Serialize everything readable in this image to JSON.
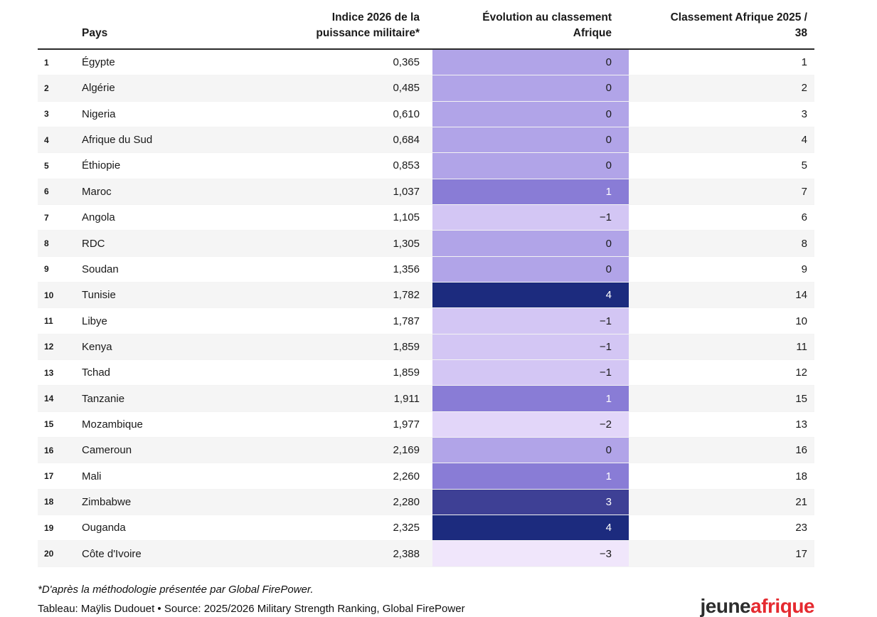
{
  "chart_data": {
    "type": "table",
    "title": "",
    "columns": [
      "Pays",
      "Indice 2026 de la puissance militaire*",
      "Évolution au classement Afrique",
      "Classement Afrique 2025 / 38"
    ],
    "rows": [
      {
        "rank": "1",
        "pays": "Égypte",
        "indice": "0,365",
        "evolution": "0",
        "classement_2025": "1"
      },
      {
        "rank": "2",
        "pays": "Algérie",
        "indice": "0,485",
        "evolution": "0",
        "classement_2025": "2"
      },
      {
        "rank": "3",
        "pays": "Nigeria",
        "indice": "0,610",
        "evolution": "0",
        "classement_2025": "3"
      },
      {
        "rank": "4",
        "pays": "Afrique du Sud",
        "indice": "0,684",
        "evolution": "0",
        "classement_2025": "4"
      },
      {
        "rank": "5",
        "pays": "Éthiopie",
        "indice": "0,853",
        "evolution": "0",
        "classement_2025": "5"
      },
      {
        "rank": "6",
        "pays": "Maroc",
        "indice": "1,037",
        "evolution": "1",
        "classement_2025": "7"
      },
      {
        "rank": "7",
        "pays": "Angola",
        "indice": "1,105",
        "evolution": "−1",
        "classement_2025": "6"
      },
      {
        "rank": "8",
        "pays": "RDC",
        "indice": "1,305",
        "evolution": "0",
        "classement_2025": "8"
      },
      {
        "rank": "9",
        "pays": "Soudan",
        "indice": "1,356",
        "evolution": "0",
        "classement_2025": "9"
      },
      {
        "rank": "10",
        "pays": "Tunisie",
        "indice": "1,782",
        "evolution": "4",
        "classement_2025": "14"
      },
      {
        "rank": "11",
        "pays": "Libye",
        "indice": "1,787",
        "evolution": "−1",
        "classement_2025": "10"
      },
      {
        "rank": "12",
        "pays": "Kenya",
        "indice": "1,859",
        "evolution": "−1",
        "classement_2025": "11"
      },
      {
        "rank": "13",
        "pays": "Tchad",
        "indice": "1,859",
        "evolution": "−1",
        "classement_2025": "12"
      },
      {
        "rank": "14",
        "pays": "Tanzanie",
        "indice": "1,911",
        "evolution": "1",
        "classement_2025": "15"
      },
      {
        "rank": "15",
        "pays": "Mozambique",
        "indice": "1,977",
        "evolution": "−2",
        "classement_2025": "13"
      },
      {
        "rank": "16",
        "pays": "Cameroun",
        "indice": "2,169",
        "evolution": "0",
        "classement_2025": "16"
      },
      {
        "rank": "17",
        "pays": "Mali",
        "indice": "2,260",
        "evolution": "1",
        "classement_2025": "18"
      },
      {
        "rank": "18",
        "pays": "Zimbabwe",
        "indice": "2,280",
        "evolution": "3",
        "classement_2025": "21"
      },
      {
        "rank": "19",
        "pays": "Ouganda",
        "indice": "2,325",
        "evolution": "4",
        "classement_2025": "23"
      },
      {
        "rank": "20",
        "pays": "Côte d'Ivoire",
        "indice": "2,388",
        "evolution": "−3",
        "classement_2025": "17"
      }
    ]
  },
  "table": {
    "headers": {
      "pays": "Pays",
      "indice_line1": "Indice 2026 de la",
      "indice_line2": "puissance militaire*",
      "evolution_line1": "Évolution au classement",
      "evolution_line2": "Afrique",
      "classement_line1": "Classement Afrique 2025 /",
      "classement_line2": "38"
    }
  },
  "colors": {
    "evolution_scale": {
      "4": {
        "bg": "#1c2b7e",
        "text": "#ffffff"
      },
      "3": {
        "bg": "#3e4095",
        "text": "#ffffff"
      },
      "1": {
        "bg": "#897cd6",
        "text": "#ffffff"
      },
      "0": {
        "bg": "#b1a4e8",
        "text": "#1a1a1a"
      },
      "−1": {
        "bg": "#d3c6f4",
        "text": "#1a1a1a"
      },
      "−2": {
        "bg": "#e2d6f9",
        "text": "#1a1a1a"
      },
      "−3": {
        "bg": "#f0e6fb",
        "text": "#1a1a1a"
      }
    },
    "row_stripe": "#f5f5f5",
    "header_rule": "#2b2b2b",
    "logo_dark": "#2d2d2d",
    "logo_red": "#e52a30"
  },
  "footer": {
    "footnote": "*D'après la méthodologie présentée par Global FirePower.",
    "credit": "Tableau: Maÿlis Dudouet • Source: 2025/2026 Military Strength Ranking, Global FirePower",
    "logo_part1": "jeune",
    "logo_part2": "afrique"
  }
}
